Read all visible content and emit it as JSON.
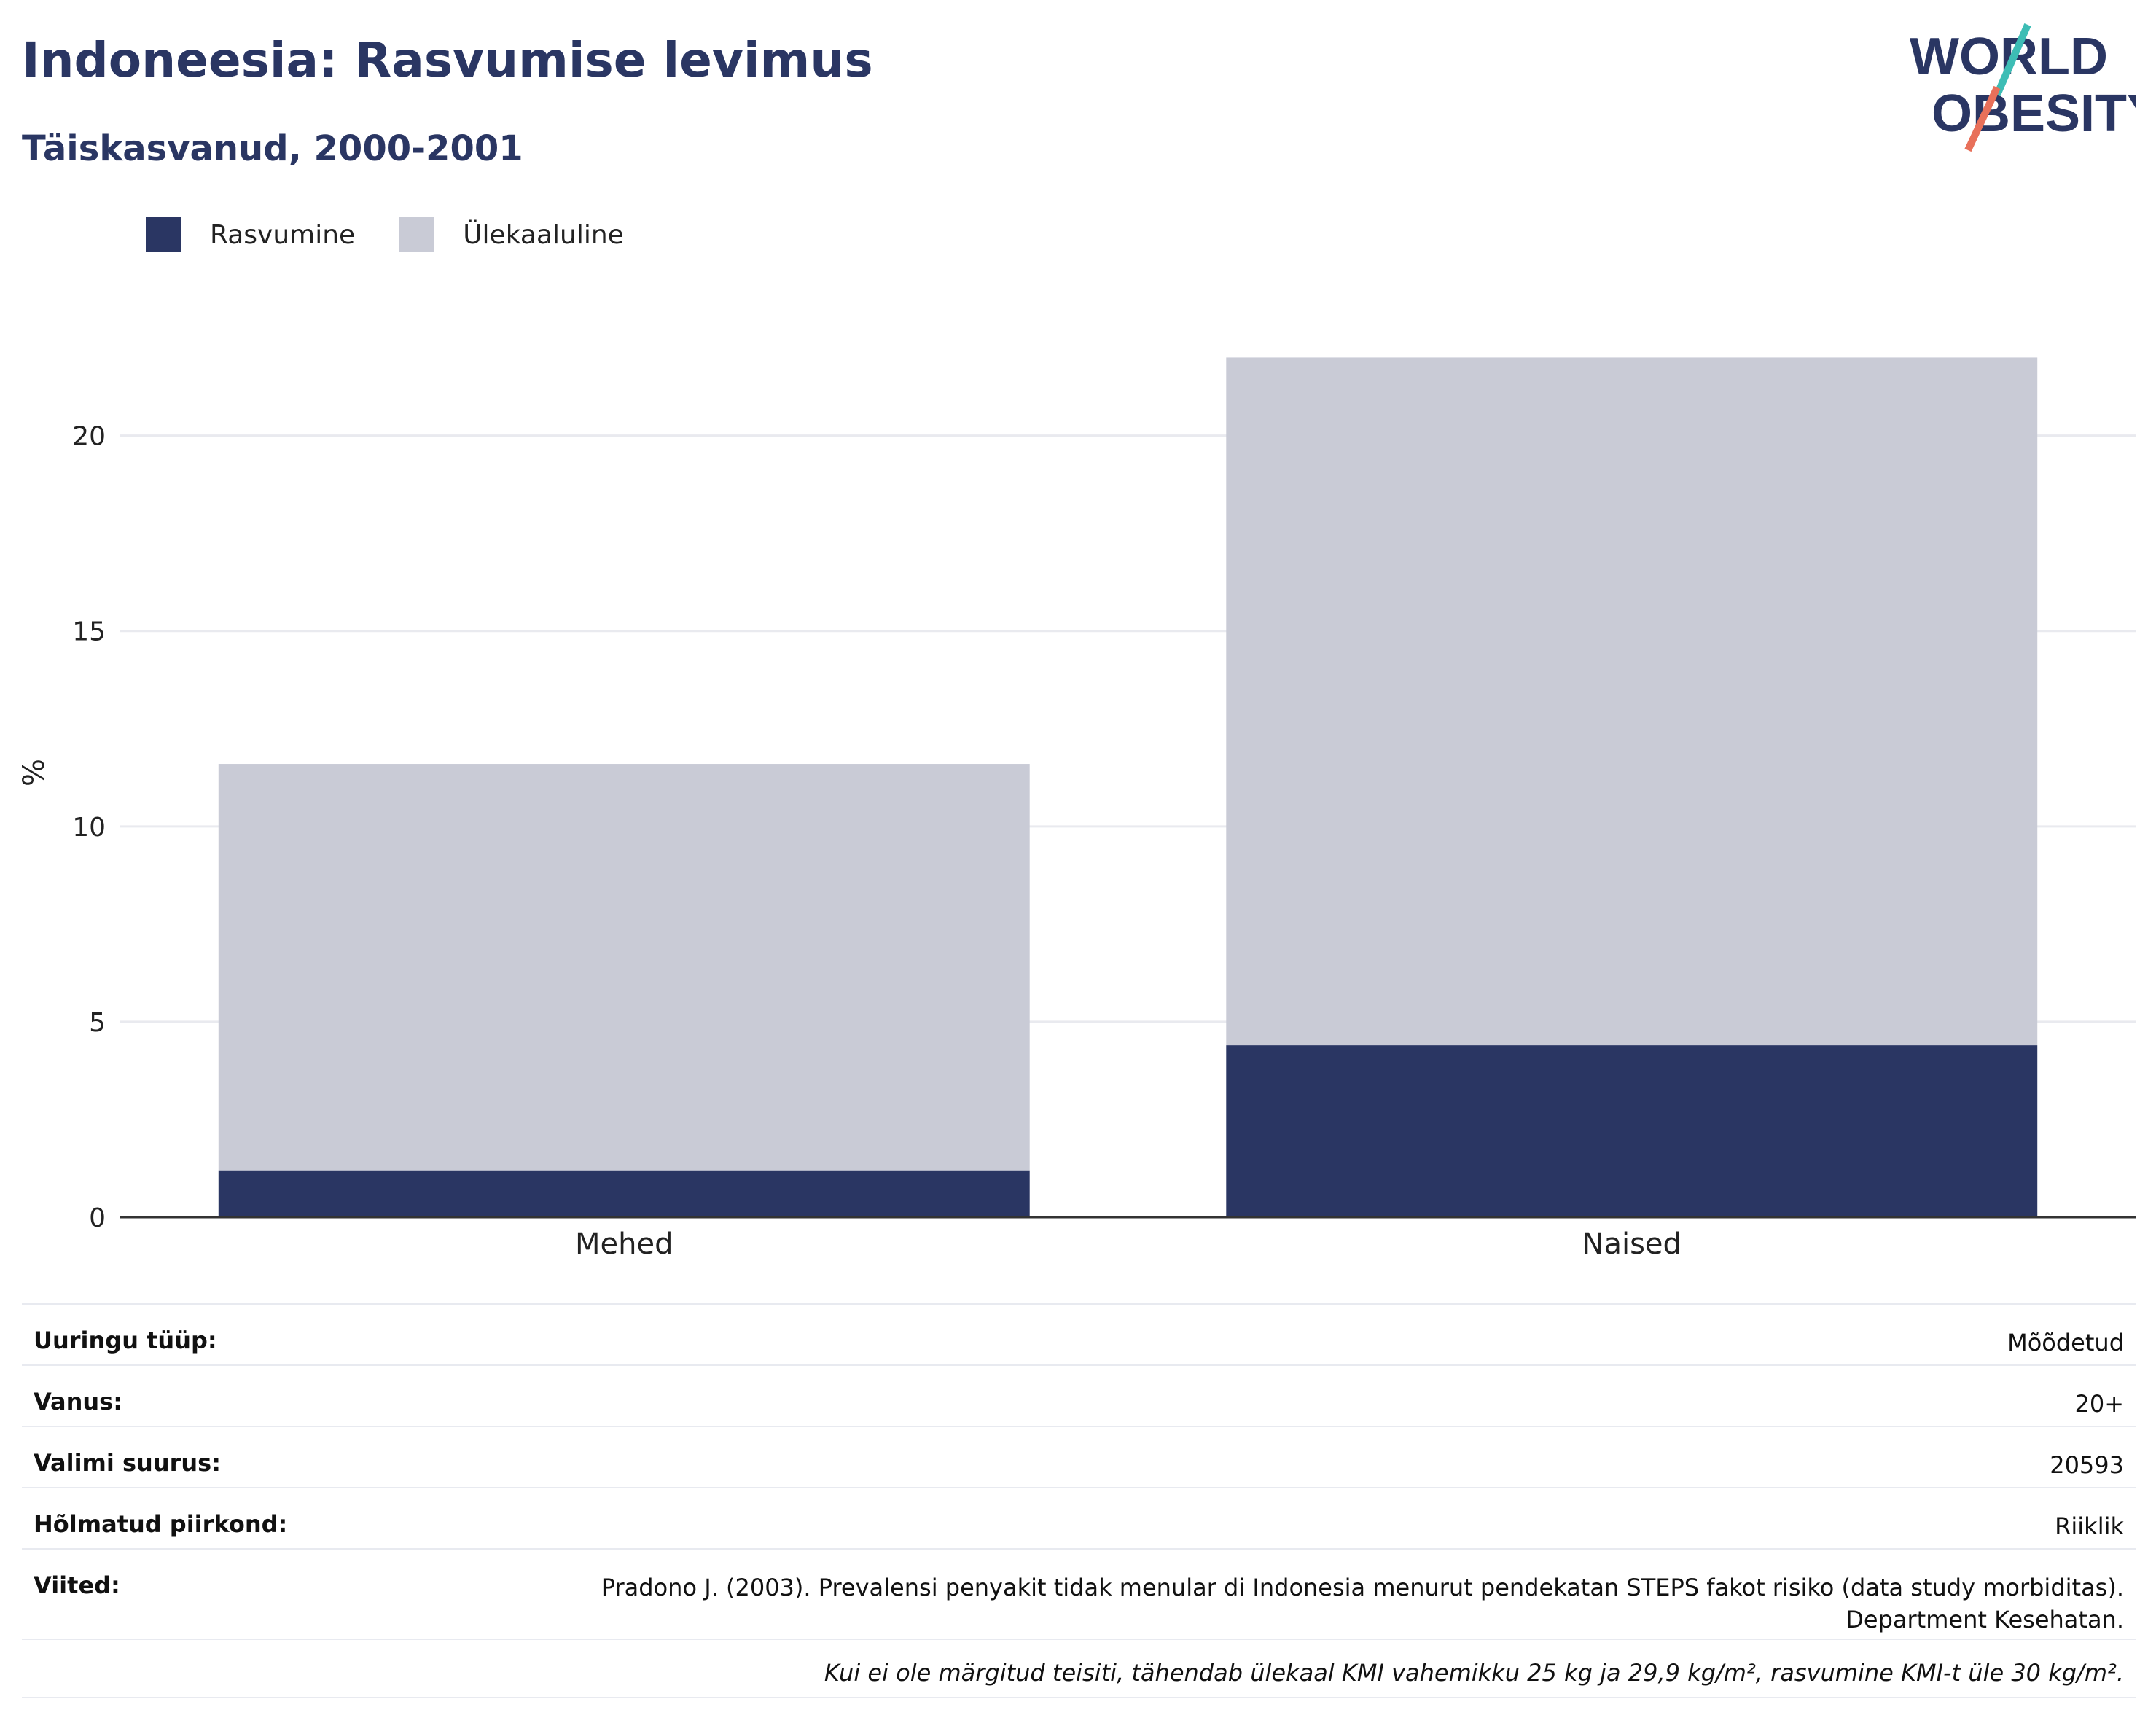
{
  "header": {
    "title": "Indoneesia: Rasvumise levimus",
    "subtitle": "Täiskasvanud, 2000-2001"
  },
  "logo": {
    "line1": "WORLD",
    "line2": "OBESITY",
    "colors": {
      "text": "#2a3663",
      "teal": "#3dbdb5",
      "coral": "#e8705a"
    }
  },
  "legend": [
    {
      "label": "Rasvumine",
      "color": "#2a3663"
    },
    {
      "label": "Ülekaaluline",
      "color": "#c9cbd6"
    }
  ],
  "chart_data": {
    "type": "bar",
    "stacked": true,
    "categories": [
      "Mehed",
      "Naised"
    ],
    "series": [
      {
        "name": "Rasvumine",
        "values": [
          1.2,
          4.4
        ],
        "color": "#2a3663"
      },
      {
        "name": "Ülekaaluline",
        "values": [
          10.4,
          17.6
        ],
        "color": "#c9cbd6"
      }
    ],
    "ylabel": "%",
    "ylim": [
      0,
      23.5
    ],
    "yticks": [
      0,
      5,
      10,
      15,
      20
    ],
    "grid": true,
    "legend_position": "top-left"
  },
  "info": {
    "survey_type": {
      "label": "Uuringu tüüp:",
      "value": "Mõõdetud"
    },
    "age": {
      "label": "Vanus:",
      "value": "20+"
    },
    "sample_size": {
      "label": "Valimi suurus:",
      "value": "20593"
    },
    "area": {
      "label": "Hõlmatud piirkond:",
      "value": "Riiklik"
    },
    "references": {
      "label": "Viited:",
      "value": "Pradono J. (2003). Prevalensi penyakit tidak menular di Indonesia menurut pendekatan STEPS fakot risiko (data study morbiditas). Department Kesehatan."
    },
    "note": "Kui ei ole märgitud teisiti, tähendab ülekaal KMI vahemikku 25 kg ja 29,9 kg/m², rasvumine KMI-t üle 30 kg/m²."
  }
}
